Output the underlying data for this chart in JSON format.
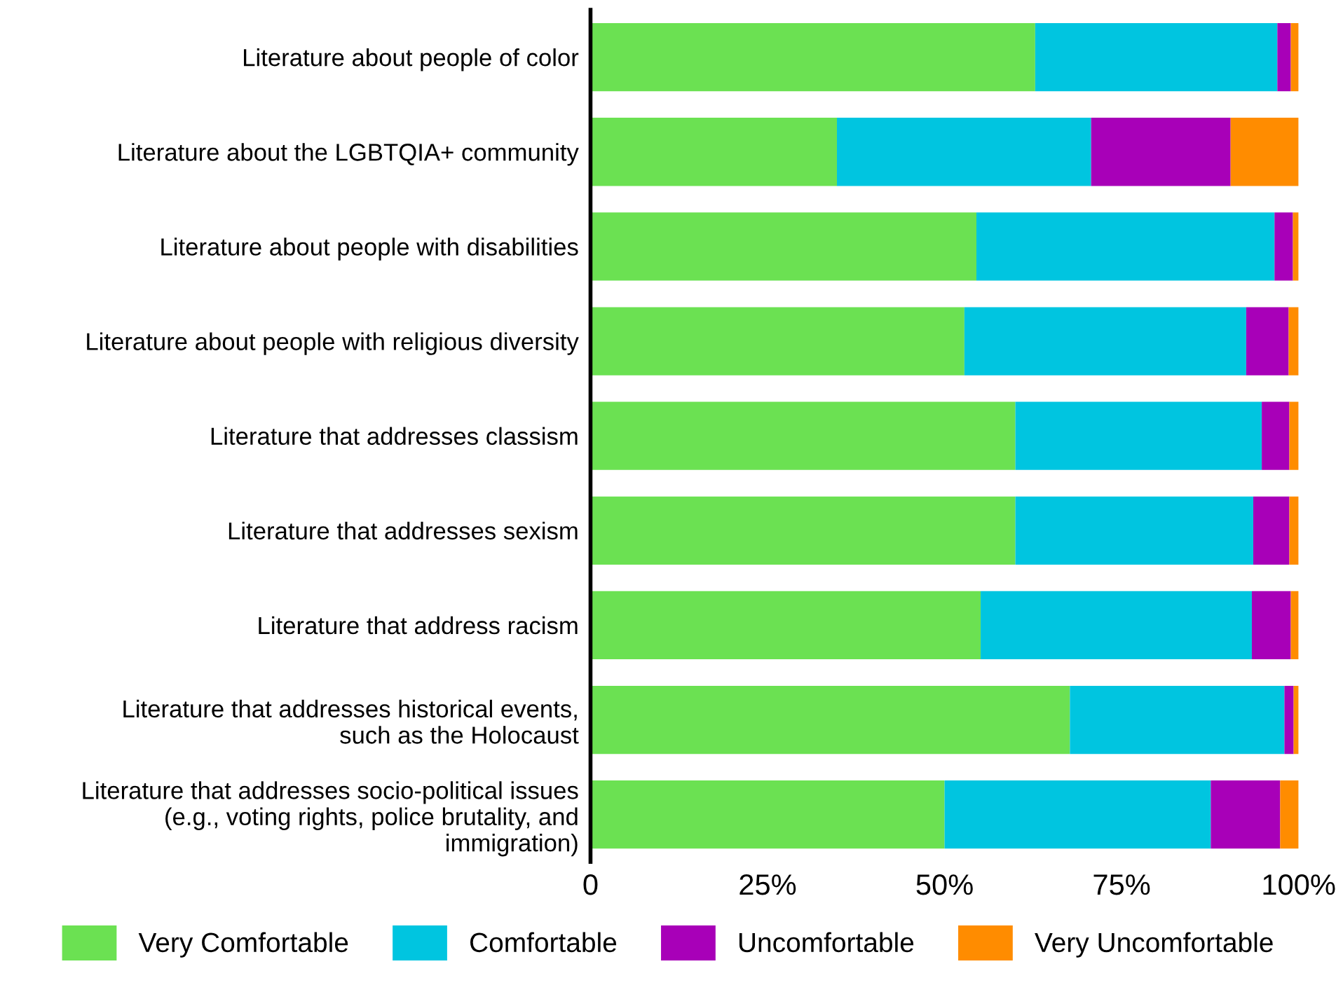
{
  "chart_data": {
    "type": "bar",
    "orientation": "horizontal",
    "stacked": true,
    "categories": [
      "Literature about people of color",
      "Literature about the LGBTQIA+ community",
      "Literature about people with disabilities",
      "Literature about people with religious diversity",
      "Literature that addresses classism",
      "Literature that addresses sexism",
      "Literature that address racism",
      "Literature that addresses historical events,\nsuch as the Holocaust",
      "Literature that addresses socio-political issues\n(e.g., voting rights, police brutality, and\nimmigration)"
    ],
    "series": [
      {
        "name": "Very Comfortable",
        "color": "#6be152",
        "values": [
          62.8,
          34.8,
          54.5,
          52.8,
          60.0,
          60.0,
          55.1,
          67.7,
          50.0
        ]
      },
      {
        "name": "Comfortable",
        "color": "#00c5e0",
        "values": [
          34.2,
          35.9,
          42.1,
          39.8,
          34.8,
          33.6,
          38.3,
          30.3,
          37.6
        ]
      },
      {
        "name": "Uncomfortable",
        "color": "#a800b8",
        "values": [
          1.9,
          19.7,
          2.6,
          6.0,
          3.9,
          5.1,
          5.5,
          1.3,
          9.8
        ]
      },
      {
        "name": "Very Uncomfortable",
        "color": "#ff8c00",
        "values": [
          1.1,
          9.6,
          0.8,
          1.4,
          1.3,
          1.3,
          1.1,
          0.7,
          2.6
        ]
      }
    ],
    "xlim": [
      0,
      100
    ],
    "xticks": [
      0,
      {
        "value": 25,
        "label": "25%"
      },
      {
        "value": 50,
        "label": "50%"
      },
      {
        "value": 75,
        "label": "75%"
      },
      {
        "value": 100,
        "label": "100%"
      }
    ],
    "grid": false,
    "legend": "bottom"
  }
}
